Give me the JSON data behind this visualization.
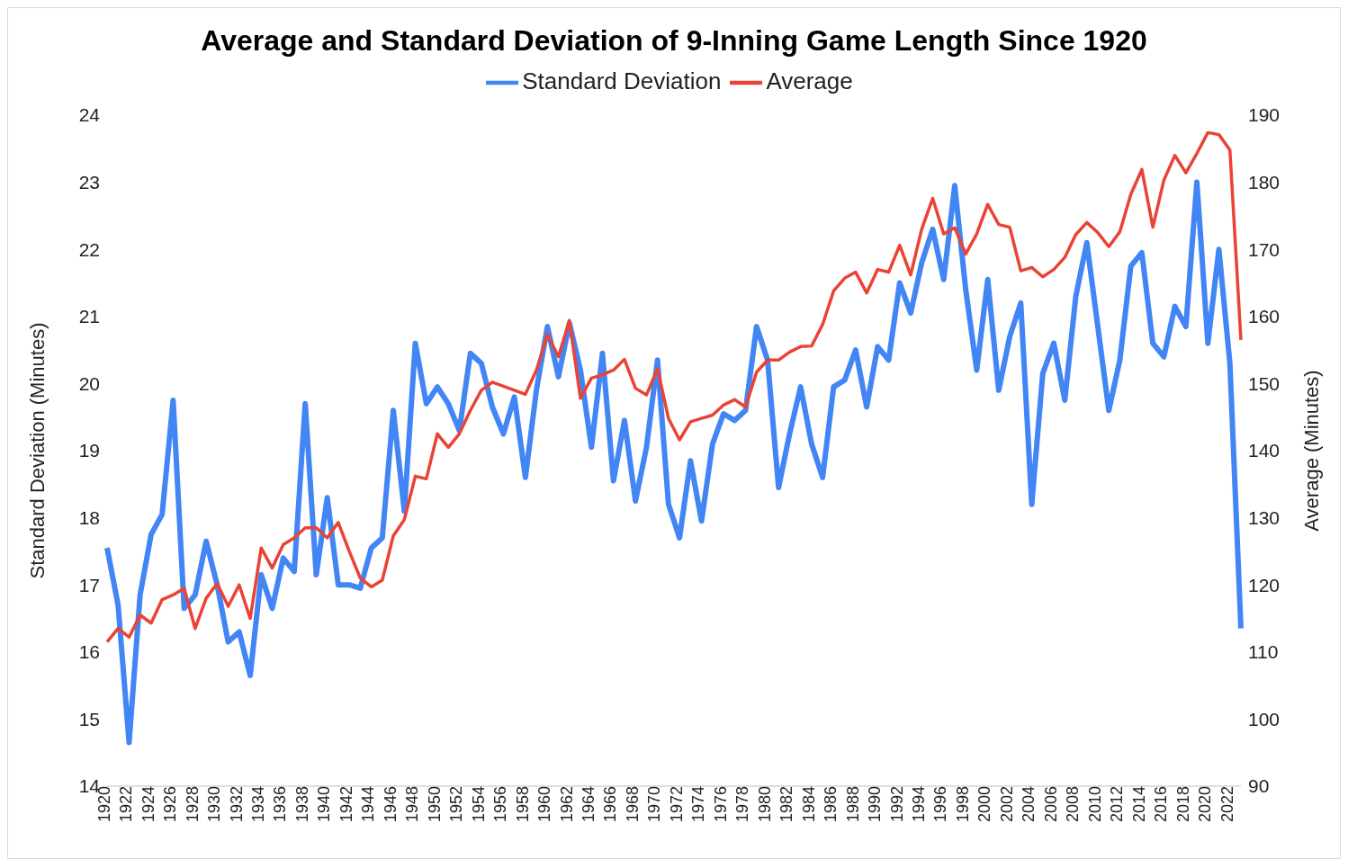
{
  "chart_data": {
    "type": "line",
    "title": "Average and Standard Deviation of 9-Inning Game Length Since 1920",
    "ylabel": "Standard Deviation (Minutes)",
    "y2label": "Average (Minutes)",
    "categories": [
      "1920",
      null,
      "1922",
      null,
      "1924",
      null,
      "1926",
      null,
      "1928",
      null,
      "1930",
      null,
      "1932",
      null,
      "1934",
      null,
      "1936",
      null,
      "1938",
      null,
      "1940",
      null,
      "1942",
      null,
      "1944",
      null,
      "1946",
      null,
      "1948",
      null,
      "1950",
      null,
      "1952",
      null,
      "1954",
      null,
      "1956",
      null,
      "1958",
      null,
      "1960",
      null,
      "1962",
      null,
      "1964",
      null,
      "1966",
      null,
      "1968",
      null,
      "1970",
      null,
      "1972",
      null,
      "1974",
      null,
      "1976",
      null,
      "1978",
      null,
      "1980",
      null,
      "1982",
      null,
      "1984",
      null,
      "1986",
      null,
      "1988",
      null,
      "1990",
      null,
      "1992",
      null,
      "1994",
      null,
      "1996",
      null,
      "1998",
      null,
      "2000",
      null,
      "2002",
      null,
      "2004",
      null,
      "2006",
      null,
      "2008",
      null,
      "2010",
      null,
      "2012",
      null,
      "2014",
      null,
      "2016",
      null,
      "2018",
      null,
      "2020",
      null,
      "2022",
      null
    ],
    "series": [
      {
        "name": "Standard Deviation",
        "color": "#4285f4",
        "values": [
          17.55,
          16.7,
          14.65,
          16.85,
          17.75,
          18.05,
          19.75,
          16.65,
          16.85,
          17.65,
          17.0,
          16.15,
          16.3,
          15.65,
          17.15,
          16.65,
          17.4,
          17.2,
          19.7,
          17.15,
          18.3,
          17.0,
          17.0,
          16.95,
          17.55,
          17.7,
          19.6,
          18.1,
          20.6,
          19.7,
          19.95,
          19.7,
          19.3,
          20.45,
          20.3,
          19.65,
          19.25,
          19.8,
          18.6,
          19.9,
          20.85,
          20.1,
          20.9,
          20.2,
          19.05,
          20.45,
          18.55,
          19.45,
          18.25,
          19.05,
          20.35,
          18.2,
          17.7,
          18.85,
          17.95,
          19.1,
          19.55,
          19.45,
          19.6,
          20.85,
          20.35,
          18.45,
          19.25,
          19.95,
          19.1,
          18.6,
          19.95,
          20.05,
          20.5,
          19.65,
          20.55,
          20.35,
          21.5,
          21.05,
          21.8,
          22.3,
          21.55,
          22.95,
          21.4,
          20.2,
          21.55,
          19.9,
          20.7,
          21.2,
          18.2,
          20.15,
          20.6,
          19.75,
          21.3,
          22.1,
          20.85,
          19.6,
          20.35,
          21.75,
          21.95,
          20.6,
          20.4,
          21.15,
          20.85,
          23.0,
          20.6,
          22.0,
          20.3,
          16.35
        ]
      },
      {
        "name": "Average",
        "color": "#ea4335",
        "axis": "y2",
        "values": [
          111.5,
          113.5,
          112.2,
          115.5,
          114.3,
          117.8,
          118.5,
          119.5,
          113.5,
          118,
          120.2,
          116.8,
          120,
          115,
          125.5,
          122.5,
          126,
          127,
          128.5,
          128.5,
          127,
          129.3,
          125,
          121,
          119.7,
          120.7,
          127.3,
          129.7,
          136.2,
          135.8,
          142.5,
          140.5,
          142.5,
          146,
          149,
          150.2,
          149.6,
          149,
          148.4,
          152,
          157.3,
          154,
          159.4,
          147.8,
          150.8,
          151.3,
          152,
          153.6,
          149.3,
          148.3,
          152.2,
          144.8,
          141.6,
          144.3,
          144.8,
          145.3,
          146.8,
          147.6,
          146.5,
          151.7,
          153.5,
          153.5,
          154.7,
          155.5,
          155.6,
          158.8,
          163.8,
          165.7,
          166.6,
          163.5,
          167,
          166.6,
          170.6,
          166.2,
          173,
          177.6,
          172.3,
          173.2,
          169.3,
          172.3,
          176.7,
          173.7,
          173.3,
          166.8,
          167.3,
          165.9,
          167,
          168.8,
          172.2,
          174,
          172.5,
          170.4,
          172.6,
          178.2,
          181.9,
          173.3,
          180.3,
          184,
          181.4,
          184.3,
          187.4,
          187.1,
          184.8,
          156.5
        ]
      }
    ],
    "ylim": [
      14,
      24
    ],
    "yticks": [
      14,
      15,
      16,
      17,
      18,
      19,
      20,
      21,
      22,
      23,
      24
    ],
    "y2lim": [
      90,
      190
    ],
    "y2ticks": [
      90,
      100,
      110,
      120,
      130,
      140,
      150,
      160,
      170,
      180,
      190
    ],
    "grid": false,
    "legend": "top",
    "marker": "none",
    "line_style": "solid"
  }
}
